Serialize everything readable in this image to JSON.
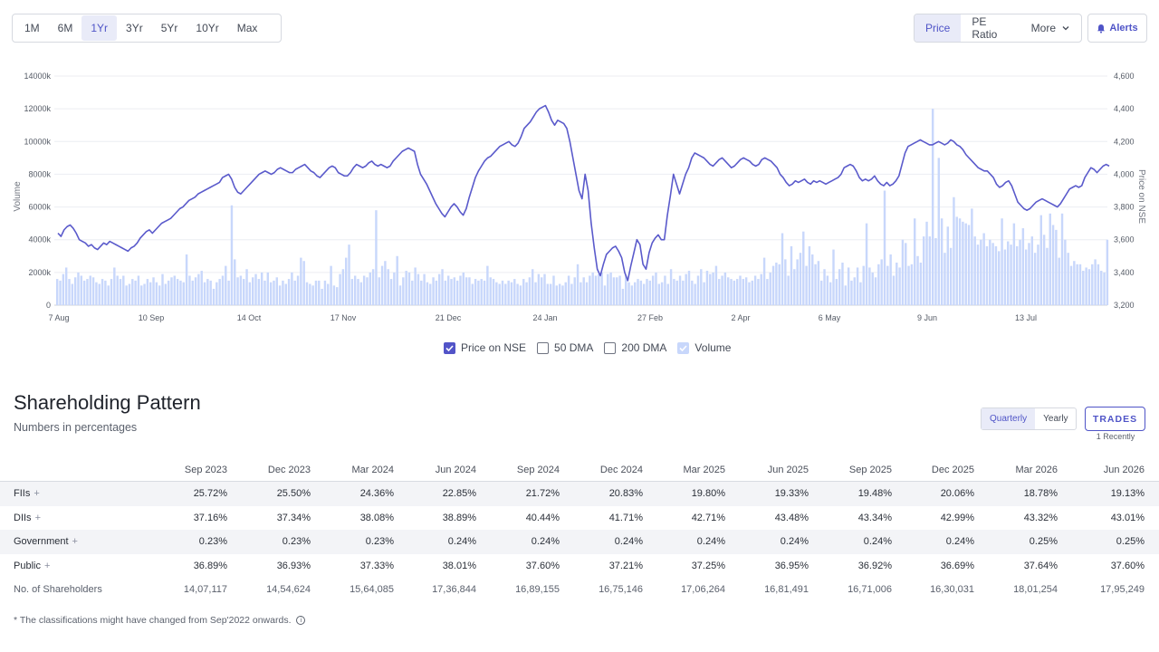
{
  "range_buttons": [
    "1M",
    "6M",
    "1Yr",
    "3Yr",
    "5Yr",
    "10Yr",
    "Max"
  ],
  "active_range": "1Yr",
  "metric_buttons": {
    "price": "Price",
    "pe_ratio": "PE Ratio",
    "more": "More"
  },
  "alerts_label": "Alerts",
  "legend": {
    "price": "Price on NSE",
    "dma50": "50 DMA",
    "dma200": "200 DMA",
    "volume": "Volume"
  },
  "colors": {
    "accent": "#5254c8",
    "volume_bar": "#c8d7fb",
    "price_line": "#5a5acb"
  },
  "chart_data": {
    "type": "line",
    "x_ticks": [
      "7 Aug",
      "10 Sep",
      "14 Oct",
      "17 Nov",
      "21 Dec",
      "24 Jan",
      "27 Feb",
      "2 Apr",
      "6 May",
      "9 Jun",
      "13 Jul"
    ],
    "y_left_label": "Volume",
    "y_left_ticks": [
      "0",
      "2000k",
      "4000k",
      "6000k",
      "8000k",
      "10000k",
      "12000k",
      "14000k"
    ],
    "y_left_range": [
      0,
      14000
    ],
    "y_right_label": "Price on NSE",
    "y_right_ticks": [
      "3,200",
      "3,400",
      "3,600",
      "3,800",
      "4,000",
      "4,200",
      "4,400",
      "4,600"
    ],
    "y_right_range": [
      3200,
      4600
    ],
    "grid": true,
    "series": [
      {
        "name": "Price on NSE",
        "values": [
          3640,
          3620,
          3660,
          3680,
          3690,
          3670,
          3640,
          3600,
          3590,
          3580,
          3560,
          3570,
          3550,
          3540,
          3560,
          3580,
          3570,
          3590,
          3580,
          3570,
          3560,
          3550,
          3540,
          3530,
          3550,
          3560,
          3580,
          3610,
          3630,
          3650,
          3660,
          3640,
          3660,
          3680,
          3700,
          3710,
          3720,
          3730,
          3750,
          3770,
          3790,
          3800,
          3820,
          3840,
          3850,
          3860,
          3880,
          3890,
          3900,
          3910,
          3920,
          3930,
          3940,
          3950,
          3980,
          3990,
          4000,
          3970,
          3920,
          3890,
          3880,
          3900,
          3920,
          3940,
          3960,
          3980,
          4000,
          4010,
          4020,
          4010,
          4000,
          4010,
          4030,
          4040,
          4030,
          4020,
          4010,
          4010,
          4030,
          4040,
          4050,
          4060,
          4040,
          4020,
          4010,
          3990,
          3980,
          4000,
          4020,
          4040,
          4050,
          4040,
          4010,
          4000,
          3990,
          3990,
          4010,
          4040,
          4060,
          4050,
          4040,
          4050,
          4070,
          4080,
          4060,
          4050,
          4060,
          4050,
          4040,
          4050,
          4080,
          4100,
          4120,
          4140,
          4150,
          4160,
          4150,
          4140,
          4060,
          4000,
          3970,
          3940,
          3900,
          3860,
          3820,
          3790,
          3760,
          3740,
          3770,
          3800,
          3820,
          3800,
          3770,
          3750,
          3790,
          3860,
          3920,
          3980,
          4020,
          4050,
          4080,
          4100,
          4110,
          4130,
          4150,
          4170,
          4180,
          4190,
          4200,
          4180,
          4170,
          4190,
          4230,
          4280,
          4300,
          4320,
          4350,
          4380,
          4400,
          4410,
          4420,
          4380,
          4330,
          4300,
          4330,
          4320,
          4310,
          4280,
          4200,
          4100,
          4000,
          3900,
          3850,
          4000,
          3900,
          3700,
          3550,
          3420,
          3380,
          3450,
          3510,
          3530,
          3550,
          3560,
          3530,
          3490,
          3400,
          3350,
          3440,
          3520,
          3600,
          3570,
          3450,
          3420,
          3520,
          3580,
          3610,
          3630,
          3600,
          3600,
          3750,
          3870,
          4000,
          3940,
          3880,
          3940,
          4000,
          4040,
          4100,
          4130,
          4120,
          4110,
          4100,
          4080,
          4060,
          4050,
          4070,
          4090,
          4100,
          4080,
          4060,
          4040,
          4050,
          4070,
          4090,
          4100,
          4090,
          4080,
          4060,
          4050,
          4060,
          4090,
          4100,
          4090,
          4080,
          4060,
          4040,
          4000,
          3980,
          3950,
          3930,
          3940,
          3960,
          3950,
          3960,
          3970,
          3950,
          3940,
          3960,
          3950,
          3960,
          3950,
          3940,
          3950,
          3960,
          3970,
          3980,
          4000,
          4040,
          4050,
          4060,
          4050,
          4020,
          3980,
          3960,
          3970,
          3960,
          3970,
          3990,
          3960,
          3940,
          3930,
          3950,
          3930,
          3940,
          3960,
          3990,
          4060,
          4130,
          4170,
          4180,
          4190,
          4200,
          4210,
          4200,
          4190,
          4180,
          4180,
          4190,
          4200,
          4190,
          4180,
          4190,
          4210,
          4200,
          4180,
          4170,
          4150,
          4120,
          4100,
          4080,
          4060,
          4040,
          4030,
          4020,
          4020,
          4000,
          3980,
          3940,
          3920,
          3930,
          3950,
          3960,
          3930,
          3880,
          3830,
          3810,
          3790,
          3780,
          3790,
          3810,
          3830,
          3840,
          3850,
          3840,
          3830,
          3820,
          3810,
          3800,
          3820,
          3850,
          3880,
          3910,
          3920,
          3930,
          3920,
          3930,
          3980,
          4010,
          4040,
          4030,
          4010,
          4030,
          4050,
          4060,
          4050
        ]
      },
      {
        "name": "Volume",
        "values": [
          1600,
          1500,
          1900,
          2300,
          1600,
          1300,
          1700,
          2000,
          1800,
          1500,
          1600,
          1800,
          1700,
          1400,
          1300,
          1600,
          1500,
          1200,
          1600,
          2300,
          1800,
          1600,
          1800,
          1200,
          1300,
          1600,
          1500,
          1800,
          1200,
          1300,
          1600,
          1400,
          1700,
          1400,
          1200,
          1900,
          1300,
          1500,
          1700,
          1800,
          1600,
          1500,
          1400,
          3100,
          1800,
          1500,
          1700,
          1900,
          2100,
          1400,
          1600,
          1500,
          1000,
          1400,
          1600,
          1800,
          2400,
          1500,
          6100,
          2800,
          1700,
          1800,
          1600,
          2200,
          1400,
          1700,
          1900,
          1600,
          2000,
          1500,
          2000,
          1400,
          1500,
          1700,
          1200,
          1500,
          1300,
          1600,
          2000,
          1500,
          1800,
          2900,
          2700,
          1400,
          1300,
          1200,
          1500,
          1500,
          1000,
          1500,
          1300,
          2400,
          1200,
          1100,
          1900,
          2200,
          2900,
          3700,
          1600,
          1800,
          1600,
          1400,
          1800,
          1700,
          2000,
          2200,
          5800,
          1700,
          2400,
          2700,
          2200,
          1600,
          2000,
          3000,
          1200,
          1700,
          2100,
          2000,
          1500,
          2300,
          1900,
          1500,
          1900,
          1400,
          1300,
          1700,
          1500,
          1900,
          2200,
          1500,
          1800,
          1600,
          1700,
          1500,
          1800,
          2000,
          1700,
          1700,
          1300,
          1600,
          1500,
          1600,
          1500,
          2400,
          1700,
          1600,
          1400,
          1300,
          1500,
          1300,
          1500,
          1400,
          1600,
          1300,
          1200,
          1600,
          1400,
          1700,
          2200,
          1400,
          1900,
          1700,
          1900,
          1300,
          1300,
          1800,
          1200,
          1300,
          1200,
          1400,
          1800,
          1300,
          1700,
          2500,
          1400,
          1700,
          1400,
          1800,
          2000,
          1800,
          1900,
          2000,
          1200,
          1900,
          2000,
          1700,
          1700,
          1800,
          1000,
          1800,
          1400,
          1200,
          1400,
          1600,
          1500,
          1300,
          1600,
          1500,
          1800,
          2000,
          1300,
          1400,
          1800,
          1300,
          2200,
          1600,
          1500,
          1800,
          1500,
          1900,
          2100,
          1500,
          1300,
          1800,
          2200,
          1400,
          2100,
          1900,
          2000,
          2400,
          1600,
          1800,
          2000,
          1700,
          1600,
          1500,
          1600,
          1800,
          1600,
          1700,
          1400,
          1500,
          1800,
          1600,
          1900,
          2900,
          1600,
          2000,
          2400,
          2600,
          2500,
          4400,
          2800,
          1800,
          3600,
          2200,
          2800,
          3200,
          4500,
          2400,
          3600,
          3100,
          2500,
          2700,
          1500,
          2200,
          1800,
          1400,
          3400,
          1600,
          2200,
          2600,
          1200,
          2300,
          1500,
          1700,
          2300,
          1400,
          2400,
          5000,
          2300,
          2000,
          1700,
          2500,
          2800,
          7000,
          2400,
          3100,
          1800,
          2600,
          2300,
          4000,
          3800,
          2400,
          2500,
          5300,
          3000,
          2600,
          4200,
          5100,
          4200,
          12000,
          4100,
          9000,
          5300,
          3200,
          4800,
          3500,
          6600,
          5400,
          5300,
          5100,
          5000,
          4900,
          5900,
          4200,
          3700,
          4000,
          4400,
          3600,
          4000,
          3800,
          3600,
          3300,
          5300,
          3400,
          3900,
          3700,
          5000,
          3600,
          4000,
          4700,
          3400,
          3800,
          4200,
          3200,
          3700,
          5500,
          4300,
          3500,
          5600,
          4900,
          4600,
          2900,
          5600,
          4000,
          3200,
          2400,
          2700,
          2500,
          2500,
          2100,
          2300,
          2200,
          2500,
          2800,
          2500,
          2100,
          2000,
          4000
        ]
      }
    ]
  },
  "shareholding": {
    "title": "Shareholding Pattern",
    "subtitle": "Numbers in percentages",
    "toggle": {
      "quarterly": "Quarterly",
      "yearly": "Yearly"
    },
    "trades_label": "TRADES",
    "trades_note": "1 Recently",
    "columns": [
      "Sep 2023",
      "Dec 2023",
      "Mar 2024",
      "Jun 2024",
      "Sep 2024",
      "Dec 2024",
      "Mar 2025",
      "Jun 2025",
      "Sep 2025",
      "Dec 2025",
      "Mar 2026",
      "Jun 2026"
    ],
    "rows": [
      {
        "label": "FIIs",
        "values": [
          "25.72%",
          "25.50%",
          "24.36%",
          "22.85%",
          "21.72%",
          "20.83%",
          "19.80%",
          "19.33%",
          "19.48%",
          "20.06%",
          "18.78%",
          "19.13%"
        ]
      },
      {
        "label": "DIIs",
        "values": [
          "37.16%",
          "37.34%",
          "38.08%",
          "38.89%",
          "40.44%",
          "41.71%",
          "42.71%",
          "43.48%",
          "43.34%",
          "42.99%",
          "43.32%",
          "43.01%"
        ]
      },
      {
        "label": "Government",
        "values": [
          "0.23%",
          "0.23%",
          "0.23%",
          "0.24%",
          "0.24%",
          "0.24%",
          "0.24%",
          "0.24%",
          "0.24%",
          "0.24%",
          "0.25%",
          "0.25%"
        ]
      },
      {
        "label": "Public",
        "values": [
          "36.89%",
          "36.93%",
          "37.33%",
          "38.01%",
          "37.60%",
          "37.21%",
          "37.25%",
          "36.95%",
          "36.92%",
          "36.69%",
          "37.64%",
          "37.60%"
        ]
      },
      {
        "label": "No. of Shareholders",
        "values": [
          "14,07,117",
          "14,54,624",
          "15,64,085",
          "17,36,844",
          "16,89,155",
          "16,75,146",
          "17,06,264",
          "16,81,491",
          "16,71,006",
          "16,30,031",
          "18,01,254",
          "17,95,249"
        ]
      }
    ],
    "footnote": "* The classifications might have changed from Sep'2022 onwards."
  }
}
